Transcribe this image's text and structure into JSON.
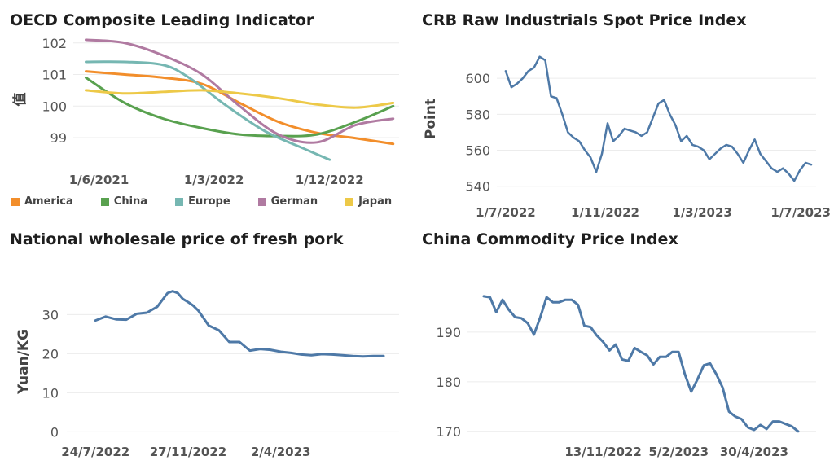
{
  "chart_data": [
    {
      "type": "line",
      "title": "OECD Composite Leading Indicator",
      "ylabel": "值",
      "ylim": [
        98.2,
        102.2
      ],
      "yticks": [
        99,
        100,
        101,
        102
      ],
      "xlim": [
        "2021-04-01",
        "2023-05-15"
      ],
      "xtick_labels": [
        {
          "date": "2021-06-01",
          "label": "1/6/2021"
        },
        {
          "date": "2022-03-01",
          "label": "1/3/2022"
        },
        {
          "date": "2022-12-01",
          "label": "1/12/2022"
        }
      ],
      "legend_position": "bottom",
      "grid": true,
      "series": [
        {
          "name": "America",
          "color": "#f28e2b",
          "x": [
            "2021-05-01",
            "2021-08-01",
            "2021-11-01",
            "2022-02-01",
            "2022-05-01",
            "2022-08-01",
            "2022-11-01",
            "2023-02-01",
            "2023-05-01"
          ],
          "y": [
            101.1,
            101.0,
            100.9,
            100.7,
            100.1,
            99.5,
            99.15,
            98.98,
            98.8
          ]
        },
        {
          "name": "China",
          "color": "#59a14f",
          "x": [
            "2021-05-01",
            "2021-08-01",
            "2021-11-01",
            "2022-02-01",
            "2022-05-01",
            "2022-08-01",
            "2022-11-01",
            "2023-02-01",
            "2023-05-01"
          ],
          "y": [
            100.9,
            100.1,
            99.6,
            99.3,
            99.1,
            99.05,
            99.1,
            99.5,
            100.0
          ]
        },
        {
          "name": "Europe",
          "color": "#76b7b2",
          "x": [
            "2021-05-01",
            "2021-08-01",
            "2021-11-01",
            "2022-01-01",
            "2022-04-01",
            "2022-07-01",
            "2022-10-01",
            "2022-12-01"
          ],
          "y": [
            101.4,
            101.4,
            101.3,
            100.9,
            100.0,
            99.2,
            98.65,
            98.3
          ]
        },
        {
          "name": "German",
          "color": "#b07aa1",
          "x": [
            "2021-05-01",
            "2021-08-01",
            "2021-11-01",
            "2022-02-01",
            "2022-05-01",
            "2022-08-01",
            "2022-11-01",
            "2023-02-01",
            "2023-05-01"
          ],
          "y": [
            102.1,
            102.0,
            101.6,
            101.0,
            100.0,
            99.1,
            98.85,
            99.4,
            99.6
          ]
        },
        {
          "name": "Japan",
          "color": "#edc948",
          "x": [
            "2021-05-01",
            "2021-08-01",
            "2021-11-01",
            "2022-02-01",
            "2022-05-01",
            "2022-08-01",
            "2022-11-01",
            "2023-02-01",
            "2023-05-01"
          ],
          "y": [
            100.5,
            100.4,
            100.45,
            100.5,
            100.4,
            100.25,
            100.05,
            99.95,
            100.1
          ]
        }
      ]
    },
    {
      "type": "line",
      "title": "CRB Raw Industrials Spot Price Index",
      "ylabel": "Point",
      "ylim": [
        534,
        620
      ],
      "yticks": [
        540,
        560,
        580,
        600
      ],
      "xlim": [
        "2022-06-20",
        "2023-07-20"
      ],
      "xtick_labels": [
        {
          "date": "2022-07-01",
          "label": "1/7/2022"
        },
        {
          "date": "2022-11-01",
          "label": "1/11/2022"
        },
        {
          "date": "2023-03-01",
          "label": "1/3/2023"
        },
        {
          "date": "2023-07-01",
          "label": "1/7/2023"
        }
      ],
      "grid": true,
      "series": [
        {
          "color": "#4e79a7",
          "x": [
            "2022-07-01",
            "2022-07-08",
            "2022-07-15",
            "2022-07-22",
            "2022-07-29",
            "2022-08-05",
            "2022-08-12",
            "2022-08-19",
            "2022-08-26",
            "2022-09-02",
            "2022-09-09",
            "2022-09-16",
            "2022-09-23",
            "2022-09-30",
            "2022-10-07",
            "2022-10-14",
            "2022-10-21",
            "2022-10-28",
            "2022-11-04",
            "2022-11-11",
            "2022-11-18",
            "2022-11-25",
            "2022-12-02",
            "2022-12-09",
            "2022-12-16",
            "2022-12-23",
            "2022-12-30",
            "2023-01-06",
            "2023-01-13",
            "2023-01-20",
            "2023-01-27",
            "2023-02-03",
            "2023-02-10",
            "2023-02-17",
            "2023-02-24",
            "2023-03-03",
            "2023-03-10",
            "2023-03-17",
            "2023-03-24",
            "2023-03-31",
            "2023-04-07",
            "2023-04-14",
            "2023-04-21",
            "2023-04-28",
            "2023-05-05",
            "2023-05-12",
            "2023-05-19",
            "2023-05-26",
            "2023-06-02",
            "2023-06-09",
            "2023-06-16",
            "2023-06-23",
            "2023-06-30",
            "2023-07-07",
            "2023-07-14"
          ],
          "y": [
            604,
            595,
            597,
            600,
            604,
            606,
            612,
            610,
            590,
            589,
            580,
            570,
            567,
            565,
            560,
            556,
            548,
            558,
            575,
            565,
            568,
            572,
            571,
            570,
            568,
            570,
            578,
            586,
            588,
            580,
            574,
            565,
            568,
            563,
            562,
            560,
            555,
            558,
            561,
            563,
            562,
            558,
            553,
            560,
            566,
            558,
            554,
            550,
            548,
            550,
            547,
            543,
            549,
            553,
            552
          ]
        }
      ]
    },
    {
      "type": "line",
      "title": "National wholesale price of fresh pork",
      "ylabel": "Yuan/KG",
      "ylim": [
        -2,
        38
      ],
      "yticks": [
        0,
        10,
        20,
        30
      ],
      "xlim": [
        "2022-06-15",
        "2023-09-10"
      ],
      "xtick_labels": [
        {
          "date": "2022-07-24",
          "label": "24/7/2022"
        },
        {
          "date": "2022-11-27",
          "label": "27/11/2022"
        },
        {
          "date": "2023-04-02",
          "label": "2/4/2023"
        }
      ],
      "grid": true,
      "series": [
        {
          "color": "#4e79a7",
          "x": [
            "2022-07-24",
            "2022-08-07",
            "2022-08-21",
            "2022-09-04",
            "2022-09-18",
            "2022-10-02",
            "2022-10-16",
            "2022-10-30",
            "2022-11-06",
            "2022-11-13",
            "2022-11-20",
            "2022-11-27",
            "2022-12-04",
            "2022-12-11",
            "2022-12-25",
            "2023-01-08",
            "2023-01-22",
            "2023-02-05",
            "2023-02-19",
            "2023-03-05",
            "2023-03-19",
            "2023-04-02",
            "2023-04-16",
            "2023-04-30",
            "2023-05-14",
            "2023-05-28",
            "2023-06-11",
            "2023-06-25",
            "2023-07-09",
            "2023-07-23",
            "2023-08-06",
            "2023-08-20"
          ],
          "y": [
            28.5,
            29.5,
            28.8,
            28.7,
            30.2,
            30.5,
            32.0,
            35.5,
            36.0,
            35.5,
            34.0,
            33.2,
            32.3,
            31.0,
            27.2,
            26.0,
            23.0,
            23.0,
            20.8,
            21.2,
            21.0,
            20.5,
            20.2,
            19.8,
            19.6,
            19.9,
            19.8,
            19.6,
            19.4,
            19.3,
            19.4,
            19.4
          ]
        }
      ]
    },
    {
      "type": "line",
      "title": "China Commodity Price Index",
      "ylim": [
        168,
        198.5
      ],
      "yticks": [
        170,
        180,
        190
      ],
      "xlim": [
        "2022-06-15",
        "2023-07-08"
      ],
      "xtick_labels": [
        {
          "date": "2022-11-13",
          "label": "13/11/2022"
        },
        {
          "date": "2023-02-05",
          "label": "5/2/2023"
        },
        {
          "date": "2023-04-30",
          "label": "30/4/2023"
        }
      ],
      "grid": true,
      "series": [
        {
          "color": "#4e79a7",
          "x": [
            "2022-07-03",
            "2022-07-10",
            "2022-07-17",
            "2022-07-24",
            "2022-07-31",
            "2022-08-07",
            "2022-08-14",
            "2022-08-21",
            "2022-08-28",
            "2022-09-04",
            "2022-09-11",
            "2022-09-18",
            "2022-09-25",
            "2022-10-02",
            "2022-10-09",
            "2022-10-16",
            "2022-10-23",
            "2022-10-30",
            "2022-11-06",
            "2022-11-13",
            "2022-11-20",
            "2022-11-27",
            "2022-12-04",
            "2022-12-11",
            "2022-12-18",
            "2022-12-25",
            "2023-01-01",
            "2023-01-08",
            "2023-01-15",
            "2023-01-22",
            "2023-01-29",
            "2023-02-05",
            "2023-02-12",
            "2023-02-19",
            "2023-02-26",
            "2023-03-05",
            "2023-03-12",
            "2023-03-19",
            "2023-03-26",
            "2023-04-02",
            "2023-04-09",
            "2023-04-16",
            "2023-04-23",
            "2023-04-30",
            "2023-05-07",
            "2023-05-14",
            "2023-05-21",
            "2023-05-28",
            "2023-06-04",
            "2023-06-11",
            "2023-06-18"
          ],
          "y": [
            197.2,
            197.0,
            194.0,
            196.5,
            194.5,
            193.0,
            192.8,
            191.8,
            189.5,
            193.0,
            197.0,
            196.0,
            196.0,
            196.5,
            196.5,
            195.5,
            191.3,
            191.0,
            189.3,
            188.0,
            186.3,
            187.5,
            184.5,
            184.2,
            186.8,
            186.0,
            185.3,
            183.5,
            185.0,
            185.0,
            186.0,
            186.0,
            181.5,
            178.0,
            180.5,
            183.3,
            183.7,
            181.5,
            178.8,
            174.0,
            173.0,
            172.5,
            170.8,
            170.3,
            171.3,
            170.5,
            172.0,
            172.0,
            171.5,
            171.0,
            170.0
          ]
        }
      ]
    }
  ]
}
